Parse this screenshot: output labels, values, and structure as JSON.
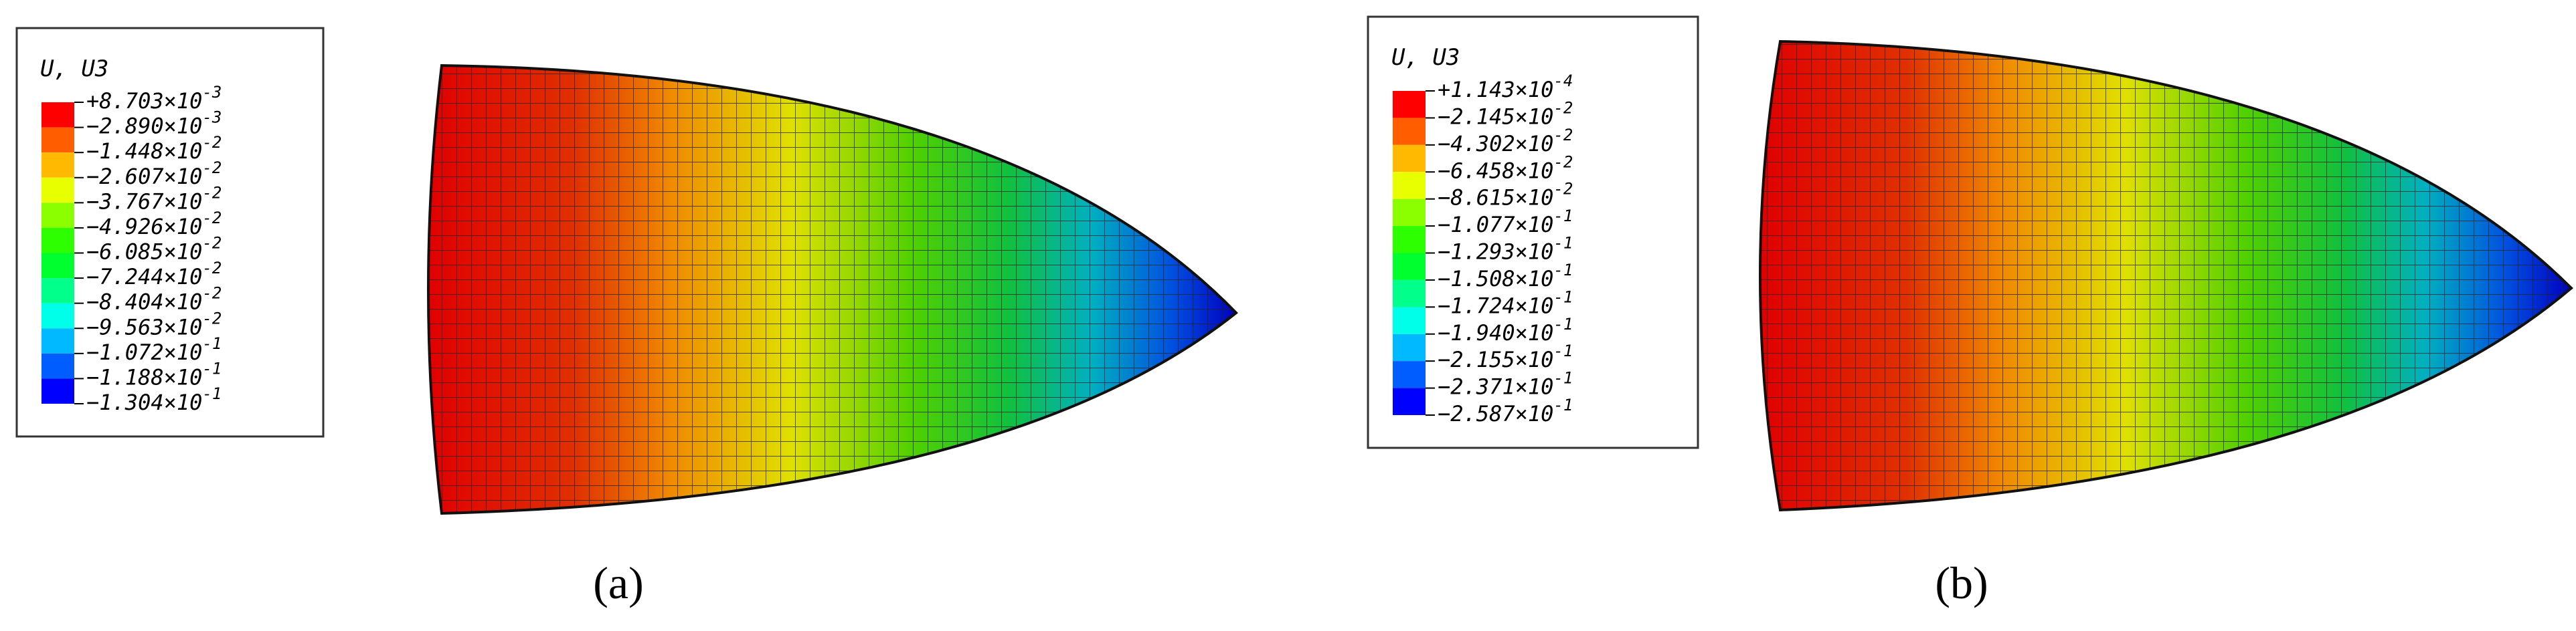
{
  "panels": [
    {
      "caption": "(a)",
      "legend": {
        "title": "U, U3",
        "labels": [
          {
            "mantissa": "+8.703×10",
            "exponent": "-3"
          },
          {
            "mantissa": "−2.890×10",
            "exponent": "-3"
          },
          {
            "mantissa": "−1.448×10",
            "exponent": "-2"
          },
          {
            "mantissa": "−2.607×10",
            "exponent": "-2"
          },
          {
            "mantissa": "−3.767×10",
            "exponent": "-2"
          },
          {
            "mantissa": "−4.926×10",
            "exponent": "-2"
          },
          {
            "mantissa": "−6.085×10",
            "exponent": "-2"
          },
          {
            "mantissa": "−7.244×10",
            "exponent": "-2"
          },
          {
            "mantissa": "−8.404×10",
            "exponent": "-2"
          },
          {
            "mantissa": "−9.563×10",
            "exponent": "-2"
          },
          {
            "mantissa": "−1.072×10",
            "exponent": "-1"
          },
          {
            "mantissa": "−1.188×10",
            "exponent": "-1"
          },
          {
            "mantissa": "−1.304×10",
            "exponent": "-1"
          }
        ]
      }
    },
    {
      "caption": "(b)",
      "legend": {
        "title": "U, U3",
        "labels": [
          {
            "mantissa": "+1.143×10",
            "exponent": "-4"
          },
          {
            "mantissa": "−2.145×10",
            "exponent": "-2"
          },
          {
            "mantissa": "−4.302×10",
            "exponent": "-2"
          },
          {
            "mantissa": "−6.458×10",
            "exponent": "-2"
          },
          {
            "mantissa": "−8.615×10",
            "exponent": "-2"
          },
          {
            "mantissa": "−1.077×10",
            "exponent": "-1"
          },
          {
            "mantissa": "−1.293×10",
            "exponent": "-1"
          },
          {
            "mantissa": "−1.508×10",
            "exponent": "-1"
          },
          {
            "mantissa": "−1.724×10",
            "exponent": "-1"
          },
          {
            "mantissa": "−1.940×10",
            "exponent": "-1"
          },
          {
            "mantissa": "−2.155×10",
            "exponent": "-1"
          },
          {
            "mantissa": "−2.371×10",
            "exponent": "-1"
          },
          {
            "mantissa": "−2.587×10",
            "exponent": "-1"
          }
        ]
      }
    }
  ],
  "colors": [
    "#ff0000",
    "#ff5d00",
    "#ffb900",
    "#e8ff00",
    "#8bff00",
    "#2eff00",
    "#00ff2e",
    "#00ff8b",
    "#00ffe8",
    "#00b9ff",
    "#005dff",
    "#0000ff"
  ]
}
